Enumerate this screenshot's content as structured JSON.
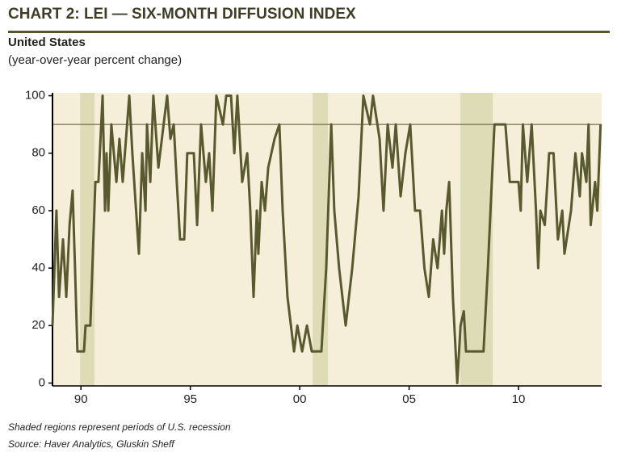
{
  "chart_data": {
    "type": "line",
    "title": "CHART 2: LEI — SIX-MONTH DIFFUSION INDEX",
    "subtitle": "United States",
    "y_axis_label": "(year-over-year percent change)",
    "footnotes": [
      "Shaded regions represent periods of U.S. recession",
      "Source: Haver Analytics, Gluskin Sheff"
    ],
    "recessions": [
      [
        1989.96,
        1990.62
      ],
      [
        2000.59,
        2001.29
      ],
      [
        2007.34,
        2008.82
      ]
    ],
    "reference_line": 90,
    "xlim": [
      1988.7,
      2013.8
    ],
    "ylim": [
      -1,
      101
    ],
    "xticks": [
      {
        "value": 1990,
        "label": "90"
      },
      {
        "value": 1995,
        "label": "95"
      },
      {
        "value": 2000,
        "label": "00"
      },
      {
        "value": 2005,
        "label": "05"
      },
      {
        "value": 2010,
        "label": "10"
      }
    ],
    "yticks": [
      0,
      20,
      40,
      60,
      80,
      100
    ],
    "background": "#f5eed8",
    "recession_color": "#dedcb6",
    "series": [
      {
        "name": "LEI six-month diffusion index",
        "color": "#59592f",
        "x": [
          1988.7,
          1988.88,
          1989.0,
          1989.18,
          1989.33,
          1989.48,
          1989.62,
          1989.73,
          1989.84,
          1990.14,
          1990.21,
          1990.43,
          1990.66,
          1990.8,
          1990.99,
          1991.1,
          1991.17,
          1991.25,
          1991.39,
          1991.62,
          1991.76,
          1991.91,
          1992.21,
          1992.35,
          1992.65,
          1992.8,
          1992.95,
          1993.02,
          1993.17,
          1993.31,
          1993.54,
          1993.94,
          1994.09,
          1994.24,
          1994.38,
          1994.53,
          1994.72,
          1994.86,
          1995.16,
          1995.31,
          1995.49,
          1995.71,
          1995.86,
          1996.01,
          1996.19,
          1996.49,
          1996.64,
          1996.86,
          1997.01,
          1997.15,
          1997.37,
          1997.6,
          1997.74,
          1997.89,
          1998.04,
          1998.11,
          1998.26,
          1998.41,
          1998.56,
          1998.85,
          1999.07,
          1999.22,
          1999.44,
          1999.74,
          1999.89,
          2000.11,
          2000.33,
          2000.55,
          2000.99,
          2001.21,
          2001.44,
          2001.58,
          2001.8,
          2002.1,
          2002.4,
          2002.69,
          2002.91,
          2003.21,
          2003.35,
          2003.65,
          2003.83,
          2004.02,
          2004.24,
          2004.39,
          2004.61,
          2004.83,
          2005.05,
          2005.27,
          2005.5,
          2005.7,
          2005.9,
          2006.1,
          2006.3,
          2006.5,
          2006.6,
          2006.7,
          2006.83,
          2007.0,
          2007.2,
          2007.35,
          2007.5,
          2007.6,
          2008.4,
          2008.6,
          2008.9,
          2009.4,
          2009.6,
          2010.0,
          2010.1,
          2010.2,
          2010.4,
          2010.6,
          2010.8,
          2010.9,
          2011.0,
          2011.2,
          2011.4,
          2011.6,
          2011.8,
          2012.0,
          2012.1,
          2012.4,
          2012.6,
          2012.8,
          2012.9,
          2013.1,
          2013.2,
          2013.3,
          2013.5,
          2013.6,
          2013.75
        ],
        "values": [
          20,
          60,
          30,
          50,
          30,
          55,
          67,
          40,
          11,
          11,
          20,
          20,
          70,
          70,
          100,
          60,
          80,
          60,
          90,
          70,
          85,
          70,
          100,
          80,
          45,
          80,
          60,
          90,
          70,
          100,
          75,
          100,
          85,
          90,
          70,
          50,
          50,
          80,
          80,
          55,
          90,
          70,
          80,
          60,
          100,
          90,
          100,
          100,
          80,
          100,
          70,
          80,
          60,
          30,
          60,
          45,
          70,
          60,
          75,
          85,
          90,
          60,
          30,
          11,
          20,
          11,
          20,
          11,
          11,
          40,
          90,
          60,
          40,
          20,
          40,
          65,
          100,
          90,
          100,
          85,
          60,
          90,
          75,
          90,
          65,
          80,
          90,
          60,
          60,
          40,
          30,
          50,
          40,
          60,
          45,
          60,
          70,
          30,
          0,
          20,
          25,
          11,
          11,
          40,
          90,
          90,
          70,
          70,
          60,
          90,
          70,
          90,
          60,
          40,
          60,
          55,
          80,
          80,
          50,
          60,
          45,
          60,
          80,
          65,
          80,
          70,
          90,
          55,
          70,
          60,
          90
        ]
      }
    ]
  }
}
